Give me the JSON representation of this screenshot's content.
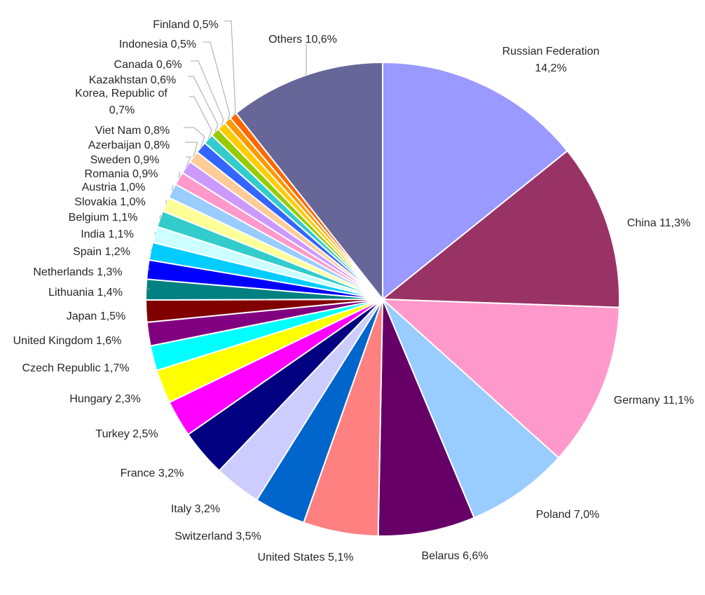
{
  "chart_data": {
    "type": "pie",
    "start_angle_deg": 0,
    "direction": "clockwise",
    "slices": [
      {
        "label": "Russian Federation 14,2%",
        "value": 14.2,
        "color": "#9999ff"
      },
      {
        "label": "China 11,3%",
        "value": 11.3,
        "color": "#993366"
      },
      {
        "label": "Germany 11,1%",
        "value": 11.1,
        "color": "#ff99cc"
      },
      {
        "label": "Poland 7,0%",
        "value": 7.0,
        "color": "#99ccff"
      },
      {
        "label": "Belarus 6,6%",
        "value": 6.6,
        "color": "#660066"
      },
      {
        "label": "United States 5,1%",
        "value": 5.1,
        "color": "#ff8080"
      },
      {
        "label": "Switzerland 3,5%",
        "value": 3.5,
        "color": "#0066cc"
      },
      {
        "label": "Italy 3,2%",
        "value": 3.2,
        "color": "#ccccff"
      },
      {
        "label": "France 3,2%",
        "value": 3.2,
        "color": "#000080"
      },
      {
        "label": "Turkey 2,5%",
        "value": 2.5,
        "color": "#ff00ff"
      },
      {
        "label": "Hungary 2,3%",
        "value": 2.3,
        "color": "#ffff00"
      },
      {
        "label": "Czech Republic 1,7%",
        "value": 1.7,
        "color": "#00ffff"
      },
      {
        "label": "United Kingdom 1,6%",
        "value": 1.6,
        "color": "#800080"
      },
      {
        "label": "Japan 1,5%",
        "value": 1.5,
        "color": "#800000"
      },
      {
        "label": "Lithuania 1,4%",
        "value": 1.4,
        "color": "#008080"
      },
      {
        "label": "Netherlands 1,3%",
        "value": 1.3,
        "color": "#0000ff"
      },
      {
        "label": "Spain 1,2%",
        "value": 1.2,
        "color": "#00ccff"
      },
      {
        "label": "India 1,1%",
        "value": 1.1,
        "color": "#ccffff"
      },
      {
        "label": "Belgium 1,1%",
        "value": 1.1,
        "color": "#33cccc"
      },
      {
        "label": "Slovakia 1,0%",
        "value": 1.0,
        "color": "#ffff99"
      },
      {
        "label": "Austria 1,0%",
        "value": 1.0,
        "color": "#99ccff"
      },
      {
        "label": "Romania 0,9%",
        "value": 0.9,
        "color": "#ff99cc"
      },
      {
        "label": "Sweden 0,9%",
        "value": 0.9,
        "color": "#cc99ff"
      },
      {
        "label": "Azerbaijan 0,8%",
        "value": 0.8,
        "color": "#ffcc99"
      },
      {
        "label": "Viet Nam 0,8%",
        "value": 0.8,
        "color": "#3366ff"
      },
      {
        "label": "Korea, Republic of 0,7%",
        "value": 0.7,
        "color": "#33cccc"
      },
      {
        "label": "Kazakhstan 0,6%",
        "value": 0.6,
        "color": "#99cc00"
      },
      {
        "label": "Canada 0,6%",
        "value": 0.6,
        "color": "#ffcc00"
      },
      {
        "label": "Indonesia 0,5%",
        "value": 0.5,
        "color": "#ff9900"
      },
      {
        "label": "Finland 0,5%",
        "value": 0.5,
        "color": "#ff6600"
      },
      {
        "label": "Others 10,6%",
        "value": 10.6,
        "color": "#666699"
      }
    ],
    "title": "",
    "legend": "none"
  }
}
